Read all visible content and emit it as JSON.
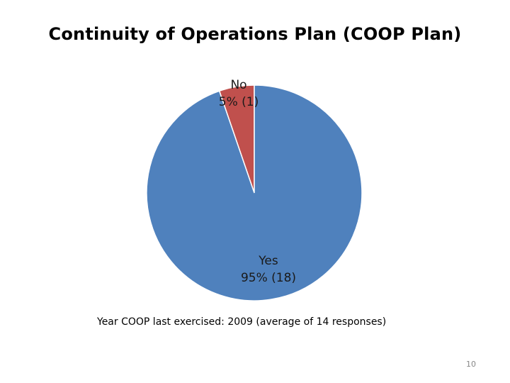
{
  "slide": {
    "title": "Continuity of Operations Plan (COOP Plan)",
    "note": "Year COOP last exercised: 2009 (average of 14 responses)",
    "page_number": "10"
  },
  "chart_data": {
    "type": "pie",
    "title": "Continuity of Operations Plan (COOP Plan)",
    "slices": [
      {
        "label": "Yes",
        "percent_label": "95% (18)",
        "count": 18,
        "color": "#4f81bd"
      },
      {
        "label": "No",
        "percent_label": "5% (1)",
        "count": 1,
        "color": "#c0504d"
      }
    ],
    "total": 19,
    "start_angle": "12 o'clock",
    "direction": "clockwise, No first then Yes"
  }
}
